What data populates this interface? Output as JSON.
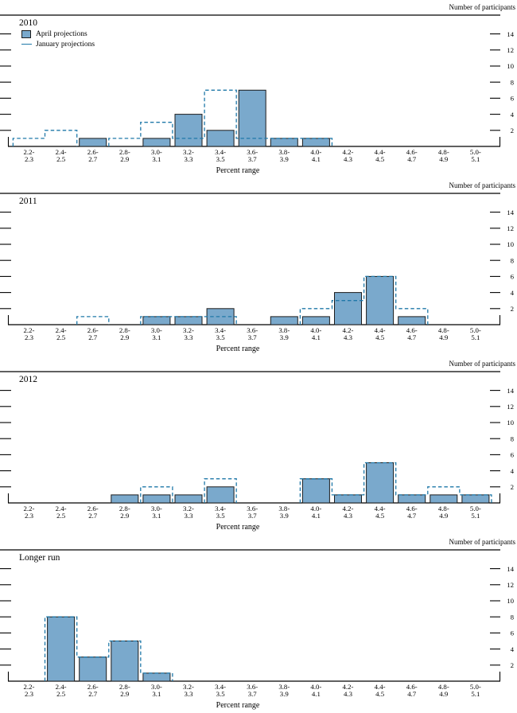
{
  "figure": {
    "y_axis_label": "Number of participants",
    "x_axis_label": "Percent range",
    "y_ticks": [
      2,
      4,
      6,
      8,
      10,
      12,
      14
    ],
    "legend": [
      {
        "label": "April projections",
        "style": "filled"
      },
      {
        "label": "January projections",
        "style": "dashed"
      }
    ],
    "colors": {
      "bar_fill": "#7aa9cc",
      "bar_stroke": "#1c1c1c",
      "dashed_line": "#1f78a8",
      "axis": "#000000"
    }
  },
  "chart_data": [
    {
      "type": "bar",
      "title": "2010",
      "xlabel": "Percent range",
      "ylabel": "Number of participants",
      "ylim": [
        0,
        16
      ],
      "y_ticks": [
        2,
        4,
        6,
        8,
        10,
        12,
        14
      ],
      "legend_position": "top-left",
      "grid": false,
      "categories": [
        "2.2-2.3",
        "2.4-2.5",
        "2.6-2.7",
        "2.8-2.9",
        "3.0-3.1",
        "3.2-3.3",
        "3.4-3.5",
        "3.6-3.7",
        "3.8-3.9",
        "4.0-4.1",
        "4.2-4.3",
        "4.4-4.5",
        "4.6-4.7",
        "4.8-4.9",
        "5.0-5.1"
      ],
      "series": [
        {
          "name": "April projections",
          "style": "filled-bar",
          "values": [
            0,
            0,
            1,
            0,
            1,
            4,
            2,
            7,
            1,
            1,
            0,
            0,
            0,
            0,
            0
          ]
        },
        {
          "name": "January projections",
          "style": "dashed-step-outline",
          "values": [
            1,
            2,
            0,
            1,
            3,
            1,
            7,
            1,
            1,
            1,
            0,
            0,
            0,
            0,
            0
          ]
        }
      ]
    },
    {
      "type": "bar",
      "title": "2011",
      "xlabel": "Percent range",
      "ylabel": "Number of participants",
      "ylim": [
        0,
        16
      ],
      "y_ticks": [
        2,
        4,
        6,
        8,
        10,
        12,
        14
      ],
      "grid": false,
      "categories": [
        "2.2-2.3",
        "2.4-2.5",
        "2.6-2.7",
        "2.8-2.9",
        "3.0-3.1",
        "3.2-3.3",
        "3.4-3.5",
        "3.6-3.7",
        "3.8-3.9",
        "4.0-4.1",
        "4.2-4.3",
        "4.4-4.5",
        "4.6-4.7",
        "4.8-4.9",
        "5.0-5.1"
      ],
      "series": [
        {
          "name": "April projections",
          "style": "filled-bar",
          "values": [
            0,
            0,
            0,
            0,
            1,
            1,
            2,
            0,
            1,
            1,
            4,
            6,
            1,
            0,
            0
          ]
        },
        {
          "name": "January projections",
          "style": "dashed-step-outline",
          "values": [
            0,
            0,
            1,
            0,
            1,
            1,
            1,
            0,
            0,
            2,
            3,
            6,
            2,
            0,
            0
          ]
        }
      ]
    },
    {
      "type": "bar",
      "title": "2012",
      "xlabel": "Percent range",
      "ylabel": "Number of participants",
      "ylim": [
        0,
        16
      ],
      "y_ticks": [
        2,
        4,
        6,
        8,
        10,
        12,
        14
      ],
      "grid": false,
      "categories": [
        "2.2-2.3",
        "2.4-2.5",
        "2.6-2.7",
        "2.8-2.9",
        "3.0-3.1",
        "3.2-3.3",
        "3.4-3.5",
        "3.6-3.7",
        "3.8-3.9",
        "4.0-4.1",
        "4.2-4.3",
        "4.4-4.5",
        "4.6-4.7",
        "4.8-4.9",
        "5.0-5.1"
      ],
      "series": [
        {
          "name": "April projections",
          "style": "filled-bar",
          "values": [
            0,
            0,
            0,
            1,
            1,
            1,
            2,
            0,
            0,
            3,
            1,
            5,
            1,
            1,
            1
          ]
        },
        {
          "name": "January projections",
          "style": "dashed-step-outline",
          "values": [
            0,
            0,
            0,
            0,
            2,
            0,
            3,
            0,
            0,
            3,
            1,
            5,
            1,
            2,
            1
          ]
        }
      ]
    },
    {
      "type": "bar",
      "title": "Longer run",
      "xlabel": "Percent range",
      "ylabel": "Number of participants",
      "ylim": [
        0,
        16
      ],
      "y_ticks": [
        2,
        4,
        6,
        8,
        10,
        12,
        14
      ],
      "grid": false,
      "categories": [
        "2.2-2.3",
        "2.4-2.5",
        "2.6-2.7",
        "2.8-2.9",
        "3.0-3.1",
        "3.2-3.3",
        "3.4-3.5",
        "3.6-3.7",
        "3.8-3.9",
        "4.0-4.1",
        "4.2-4.3",
        "4.4-4.5",
        "4.6-4.7",
        "4.8-4.9",
        "5.0-5.1"
      ],
      "series": [
        {
          "name": "April projections",
          "style": "filled-bar",
          "values": [
            0,
            8,
            3,
            5,
            1,
            0,
            0,
            0,
            0,
            0,
            0,
            0,
            0,
            0,
            0
          ]
        },
        {
          "name": "January projections",
          "style": "dashed-step-outline",
          "values": [
            0,
            8,
            3,
            5,
            1,
            0,
            0,
            0,
            0,
            0,
            0,
            0,
            0,
            0,
            0
          ]
        }
      ]
    }
  ]
}
